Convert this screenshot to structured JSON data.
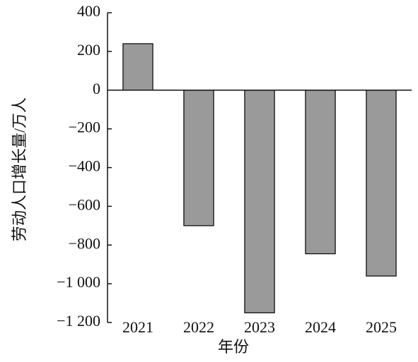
{
  "chart_data": {
    "type": "bar",
    "ylabel": "劳动人口增长量/万人",
    "xlabel": "年份",
    "categories": [
      "2021",
      "2022",
      "2023",
      "2024",
      "2025"
    ],
    "values": [
      240,
      -700,
      -1150,
      -845,
      -960
    ],
    "color": "#9a9a9a",
    "ylim": [
      -1200,
      400
    ],
    "yticks": [
      400,
      200,
      0,
      {
        "value": -200,
        "label": "−200"
      },
      {
        "value": -400,
        "label": "−400"
      },
      {
        "value": -600,
        "label": "−600"
      },
      {
        "value": -800,
        "label": "−800"
      },
      {
        "value": -1000,
        "label": "−1 000"
      },
      {
        "value": -1200,
        "label": "−1 200"
      }
    ]
  }
}
